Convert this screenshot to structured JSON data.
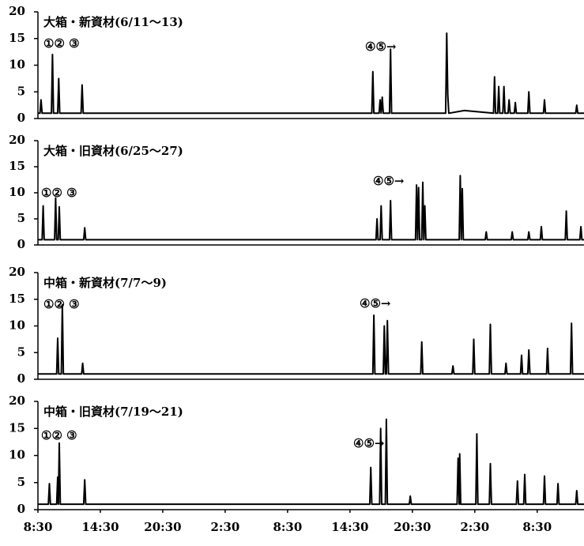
{
  "chart_data": [
    {
      "type": "line",
      "title": "大箱・新資材(6/11～13)",
      "annotations": [
        "①② ③",
        "④⑤→"
      ],
      "xlim": [
        0,
        52.5
      ],
      "ylim": [
        0,
        20
      ],
      "yticks": [
        0,
        5,
        10,
        15,
        20
      ],
      "color": "#000000",
      "x": [
        0,
        0.2,
        0.3,
        0.4,
        1.3,
        1.4,
        1.5,
        1.9,
        2.0,
        2.1,
        4.15,
        4.25,
        4.35,
        10,
        30,
        32.1,
        32.2,
        32.3,
        32.8,
        32.9,
        33.0,
        33.1,
        33.2,
        33.8,
        33.9,
        34.0,
        39.2,
        39.3,
        39.4,
        39.5,
        41,
        43.8,
        43.9,
        44.0,
        44.2,
        44.3,
        44.4,
        44.7,
        44.8,
        44.9,
        45.2,
        45.3,
        45.4,
        45.8,
        45.9,
        46.0,
        47.1,
        47.2,
        47.3,
        48.6,
        48.7,
        48.8,
        51.7,
        51.8,
        51.9,
        52.5
      ],
      "values": [
        1,
        1,
        3.5,
        1,
        1,
        12,
        1,
        1,
        7.5,
        1,
        1,
        6.3,
        1,
        1,
        1,
        1,
        8.8,
        1,
        1,
        3.5,
        1,
        4,
        1,
        1,
        13,
        1,
        1,
        16,
        4.5,
        1,
        1.5,
        1,
        7.8,
        1,
        1,
        6,
        1,
        1,
        6,
        1,
        1,
        3.5,
        1,
        1,
        3,
        1,
        1,
        5,
        1,
        1,
        3.5,
        1,
        1,
        2.5,
        1,
        1
      ]
    },
    {
      "type": "line",
      "title": "大箱・旧資材(6/25～27)",
      "annotations": [
        "①②  ③",
        "④⑤→"
      ],
      "xlim": [
        0,
        52.5
      ],
      "ylim": [
        0,
        20
      ],
      "yticks": [
        0,
        5,
        10,
        15,
        20
      ],
      "color": "#000000",
      "x": [
        0,
        0.4,
        0.5,
        0.6,
        1.6,
        1.7,
        1.8,
        1.95,
        2.05,
        2.15,
        4.4,
        4.5,
        4.6,
        20,
        32.5,
        32.6,
        32.7,
        32.9,
        33.0,
        33.1,
        33.8,
        33.9,
        34.0,
        36.3,
        36.4,
        36.5,
        36.6,
        36.7,
        36.9,
        37.0,
        37.1,
        37.2,
        37.3,
        40.5,
        40.6,
        40.7,
        40.8,
        40.9,
        43.0,
        43.1,
        43.2,
        45.5,
        45.6,
        45.7,
        47.1,
        47.2,
        47.3,
        48.3,
        48.4,
        48.5,
        50.7,
        50.8,
        50.9,
        52.1,
        52.2,
        52.3,
        52.5
      ],
      "values": [
        1,
        1,
        7.5,
        1,
        1,
        9,
        1,
        1,
        7.3,
        1,
        1,
        3.3,
        1,
        1,
        1,
        5,
        1,
        1,
        7.5,
        1,
        1,
        8.5,
        1,
        1,
        11.5,
        1,
        11,
        1,
        1,
        12,
        1,
        7.5,
        1,
        1,
        13.3,
        1,
        10.8,
        1,
        1,
        2.5,
        1,
        1,
        2.5,
        1,
        1,
        2.5,
        1,
        1,
        3.5,
        1,
        1,
        6.5,
        1,
        1,
        3.5,
        1,
        1
      ]
    },
    {
      "type": "line",
      "title": "中箱・新資材(7/7～9)",
      "annotations": [
        "①② ③",
        "④⑤→"
      ],
      "xlim": [
        0,
        52.5
      ],
      "ylim": [
        0,
        20
      ],
      "yticks": [
        0,
        5,
        10,
        15,
        20
      ],
      "color": "#000000",
      "x": [
        0,
        1.8,
        1.9,
        2.0,
        2.25,
        2.35,
        2.45,
        4.2,
        4.3,
        4.4,
        20,
        32.2,
        32.3,
        32.4,
        33.2,
        33.3,
        33.4,
        33.5,
        33.6,
        33.7,
        36.8,
        36.9,
        37.0,
        39.8,
        39.9,
        40.0,
        41.8,
        41.9,
        42.0,
        43.4,
        43.5,
        43.6,
        44.9,
        45.0,
        45.1,
        46.4,
        46.5,
        46.6,
        47.1,
        47.2,
        47.3,
        48.9,
        49.0,
        49.1,
        51.2,
        51.3,
        51.4,
        52.5
      ],
      "values": [
        1,
        1,
        7.7,
        1,
        1,
        14,
        1,
        1,
        3,
        1,
        1,
        1,
        12,
        1,
        1,
        10,
        1,
        1,
        11,
        1,
        1,
        7,
        1,
        1,
        2.5,
        1,
        1,
        7.5,
        1,
        1,
        10.3,
        1,
        1,
        3,
        1,
        1,
        4.5,
        1,
        1,
        5.5,
        1,
        1,
        5.8,
        1,
        1,
        10.5,
        1,
        1
      ]
    },
    {
      "type": "line",
      "title": "中箱・旧資材(7/19～21)",
      "annotations": [
        "①② ③",
        "④⑤→"
      ],
      "xlim": [
        0,
        52.5
      ],
      "ylim": [
        0,
        20
      ],
      "yticks": [
        0,
        5,
        10,
        15,
        20
      ],
      "color": "#000000",
      "xticks": [
        {
          "value": 0,
          "label": "8:30"
        },
        {
          "value": 6,
          "label": "14:30"
        },
        {
          "value": 12,
          "label": "20:30"
        },
        {
          "value": 18,
          "label": "2:30"
        },
        {
          "value": 24,
          "label": "8:30"
        },
        {
          "value": 30,
          "label": "14:30"
        },
        {
          "value": 36,
          "label": "20:30"
        },
        {
          "value": 42,
          "label": "2:30"
        },
        {
          "value": 48,
          "label": "8:30"
        }
      ],
      "x": [
        0,
        1.0,
        1.1,
        1.2,
        1.8,
        1.9,
        1.97,
        2.05,
        2.15,
        4.4,
        4.5,
        4.6,
        20,
        31.9,
        32.0,
        32.1,
        32.85,
        32.95,
        33.05,
        33.4,
        33.5,
        33.6,
        35.7,
        35.8,
        35.9,
        40.3,
        40.4,
        40.5,
        40.55,
        40.65,
        42.1,
        42.2,
        42.3,
        43.4,
        43.5,
        43.6,
        46.0,
        46.1,
        46.2,
        46.7,
        46.8,
        46.9,
        48.6,
        48.7,
        48.8,
        49.9,
        50.0,
        50.1,
        51.7,
        51.8,
        51.9,
        52.5
      ],
      "values": [
        1,
        1,
        4.8,
        1,
        1,
        6,
        1,
        12.3,
        1,
        1,
        5.5,
        1,
        1,
        1,
        7.8,
        1,
        1,
        15,
        1,
        1,
        16.7,
        1,
        1,
        2.5,
        1,
        1,
        9.5,
        1,
        10.3,
        1,
        1,
        14,
        1,
        1,
        8.5,
        1,
        1,
        5.3,
        1,
        1,
        6.5,
        1,
        1,
        6.2,
        1,
        1,
        4.8,
        1,
        1,
        3.5,
        1,
        1
      ]
    }
  ]
}
